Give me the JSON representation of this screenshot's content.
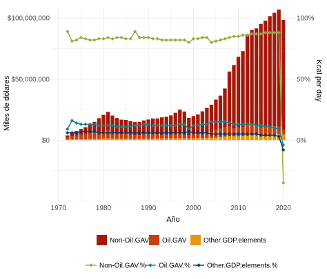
{
  "chart_data": {
    "type": "bar+line",
    "xlabel": "Año",
    "ylabel_left": "Miles de dólares",
    "ylabel_right": "Kcal per day",
    "x_ticks": [
      "1970",
      "1980",
      "1990",
      "2000",
      "2010",
      "2020"
    ],
    "y_left_ticks": [
      "$0",
      "$50,000,000",
      "$100,000,000"
    ],
    "y_right_ticks": [
      "0%",
      "50%",
      "100%"
    ],
    "xlim": [
      1968.5,
      2022.5
    ],
    "ylim_left": [
      -50000000,
      108000000
    ],
    "grid": true,
    "legend_placement": "bottom",
    "years": [
      1972,
      1973,
      1974,
      1975,
      1976,
      1977,
      1978,
      1979,
      1980,
      1981,
      1982,
      1983,
      1984,
      1985,
      1986,
      1987,
      1988,
      1989,
      1990,
      1991,
      1992,
      1993,
      1994,
      1995,
      1996,
      1997,
      1998,
      1999,
      2000,
      2001,
      2002,
      2003,
      2004,
      2005,
      2006,
      2007,
      2008,
      2009,
      2010,
      2011,
      2012,
      2013,
      2014,
      2015,
      2016,
      2017,
      2018,
      2019,
      2020
    ],
    "bar_series": [
      {
        "name": "Non-Oil.GAV",
        "color": "#a31a0b",
        "values": [
          1900000,
          2900000,
          3800000,
          4800000,
          5800000,
          7500000,
          9000000,
          11500000,
          13500000,
          15300000,
          13500000,
          12600000,
          11700000,
          11500000,
          11000000,
          10800000,
          11000000,
          11500000,
          11800000,
          12500000,
          13000000,
          14500000,
          14800000,
          16000000,
          17500000,
          19500000,
          19000000,
          14500000,
          14800000,
          16000000,
          18000000,
          20000000,
          22000000,
          25000000,
          27000000,
          32000000,
          45000000,
          52000000,
          58000000,
          62000000,
          75000000,
          78000000,
          80000000,
          85000000,
          88000000,
          91000000,
          93000000,
          96000000,
          90000000
        ]
      },
      {
        "name": "Oil.GAV",
        "color": "#c9400c",
        "values": [
          1500000,
          2500000,
          3000000,
          3500000,
          4000000,
          4500000,
          5000000,
          5500000,
          6000000,
          6500000,
          5500000,
          4500000,
          4000000,
          4000000,
          3500000,
          3000000,
          3000000,
          3500000,
          4000000,
          4000000,
          3500000,
          3000000,
          3000000,
          3000000,
          3500000,
          4000000,
          3000000,
          2500000,
          3500000,
          3500000,
          4000000,
          4500000,
          5000000,
          6000000,
          7000000,
          7500000,
          8000000,
          6500000,
          7000000,
          7500000,
          8000000,
          8500000,
          7500000,
          6000000,
          5500000,
          6000000,
          6500000,
          6000000,
          4000000
        ]
      },
      {
        "name": "Other.GDP.elements",
        "color": "#e8960e",
        "values": [
          500000,
          600000,
          700000,
          800000,
          800000,
          900000,
          1000000,
          1000000,
          1200000,
          1300000,
          1200000,
          1100000,
          1100000,
          1100000,
          1000000,
          1000000,
          1000000,
          1100000,
          1100000,
          1200000,
          1200000,
          1200000,
          1300000,
          1300000,
          1400000,
          1500000,
          1400000,
          1300000,
          1400000,
          1500000,
          1600000,
          1800000,
          2000000,
          2200000,
          2500000,
          2800000,
          3200000,
          3000000,
          3200000,
          3400000,
          3600000,
          3800000,
          4000000,
          4200000,
          4400000,
          4600000,
          4800000,
          5000000,
          4500000
        ]
      }
    ],
    "line_series": [
      {
        "name": "Non-Oil.GAV.%",
        "color": "#98ad3c",
        "values": [
          89,
          81,
          82,
          84,
          83,
          82,
          82,
          83,
          83,
          84,
          83,
          84,
          84,
          83,
          83,
          89,
          84,
          84,
          84,
          83,
          83,
          82,
          82,
          82,
          82,
          82,
          82,
          80,
          83,
          83,
          84,
          84,
          80,
          81,
          82,
          83,
          84,
          85,
          85,
          86,
          86,
          87,
          87,
          87,
          88,
          88,
          88,
          88,
          -35
        ]
      },
      {
        "name": "Oil.GAV.%",
        "color": "#1a7d8c",
        "values": [
          9,
          16,
          14,
          13,
          13,
          13,
          13,
          12,
          12,
          12,
          12,
          11,
          11,
          11,
          11,
          12,
          12,
          13,
          13,
          12,
          12,
          12,
          12,
          12,
          12,
          13,
          13,
          9,
          12,
          12,
          13,
          13,
          15,
          15,
          15,
          15,
          14,
          13,
          13,
          13,
          13,
          13,
          12,
          12,
          11,
          11,
          10,
          9,
          -4
        ]
      },
      {
        "name": "Other.GDP.elements.%",
        "color": "#0e3a6b",
        "values": [
          6,
          6,
          6,
          7,
          7,
          7,
          7,
          6,
          6,
          6,
          6,
          6,
          6,
          6,
          6,
          6,
          6,
          6,
          6,
          6,
          6,
          6,
          6,
          6,
          6,
          6,
          6,
          7,
          6,
          6,
          6,
          6,
          5,
          5,
          5,
          5,
          5,
          5,
          5,
          5,
          5,
          5,
          5,
          4,
          4,
          4,
          4,
          3,
          -8
        ]
      }
    ]
  }
}
